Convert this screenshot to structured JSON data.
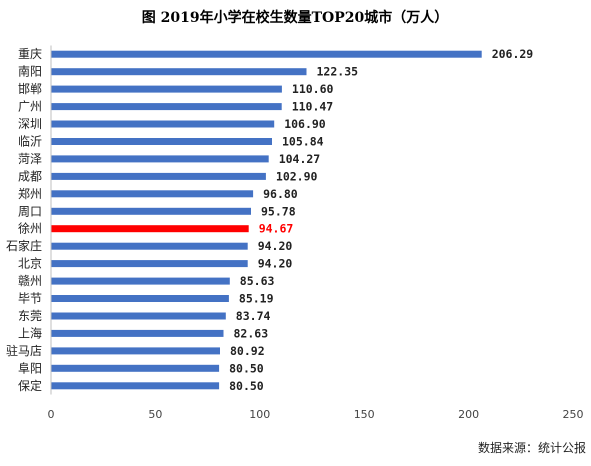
{
  "chart_data": {
    "type": "bar",
    "orientation": "horizontal",
    "title": "图 2019年小学在校生数量TOP20城市（万人）",
    "categories": [
      "重庆",
      "南阳",
      "邯郸",
      "广州",
      "深圳",
      "临沂",
      "菏泽",
      "成都",
      "郑州",
      "周口",
      "徐州",
      "石家庄",
      "北京",
      "赣州",
      "毕节",
      "东莞",
      "上海",
      "驻马店",
      "阜阳",
      "保定"
    ],
    "values": [
      206.29,
      122.35,
      110.6,
      110.47,
      106.9,
      105.84,
      104.27,
      102.9,
      96.8,
      95.78,
      94.67,
      94.2,
      94.2,
      85.63,
      85.19,
      83.74,
      82.63,
      80.92,
      80.5,
      80.5
    ],
    "value_labels": [
      "206.29",
      "122.35",
      "110.60",
      "110.47",
      "106.90",
      "105.84",
      "104.27",
      "102.90",
      "96.80",
      "95.78",
      "94.67",
      "94.20",
      "94.20",
      "85.63",
      "85.19",
      "83.74",
      "82.63",
      "80.92",
      "80.50",
      "80.50"
    ],
    "highlight_category": "徐州",
    "xlim": [
      0,
      250
    ],
    "x_ticks": [
      "0",
      "50",
      "100",
      "150",
      "200",
      "250"
    ],
    "xlabel": "",
    "ylabel": "",
    "grid": false,
    "colors": {
      "bar": "#4472c4",
      "highlight": "#ff0000"
    }
  },
  "source": "数据来源：统计公报"
}
